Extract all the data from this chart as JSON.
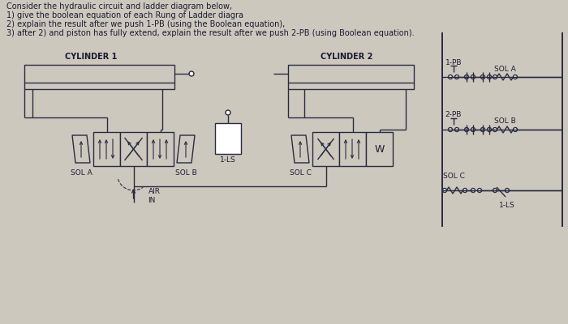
{
  "title_lines": [
    "Consider the hydraulic circuit and ladder diagram below,",
    "1) give the boolean equation of each Rung of Ladder diagra",
    "2) explain the result after we push 1-PB (using the Boolean equation),",
    "3) after 2) and piston has fully extend, explain the result after we push 2-PB (using Boolean equation)."
  ],
  "bg_color": "#cdc8be",
  "line_color": "#2a2a40",
  "text_color": "#1a1a30",
  "cylinder1_label": "CYLINDER 1",
  "cylinder2_label": "CYLINDER 2",
  "sol_a_label": "SOL A",
  "sol_b_label": "SOL B",
  "sol_c_label": "SOL C",
  "ls1_label": "1-LS",
  "air_in_label": "AIR\nIN",
  "pb1_label": "1-PB",
  "pb2_label": "2-PB",
  "ladder_sol_a": "SOL A",
  "ladder_sol_b": "SOL B",
  "ladder_sol_c": "SOL C",
  "ladder_1ls": "1-LS"
}
